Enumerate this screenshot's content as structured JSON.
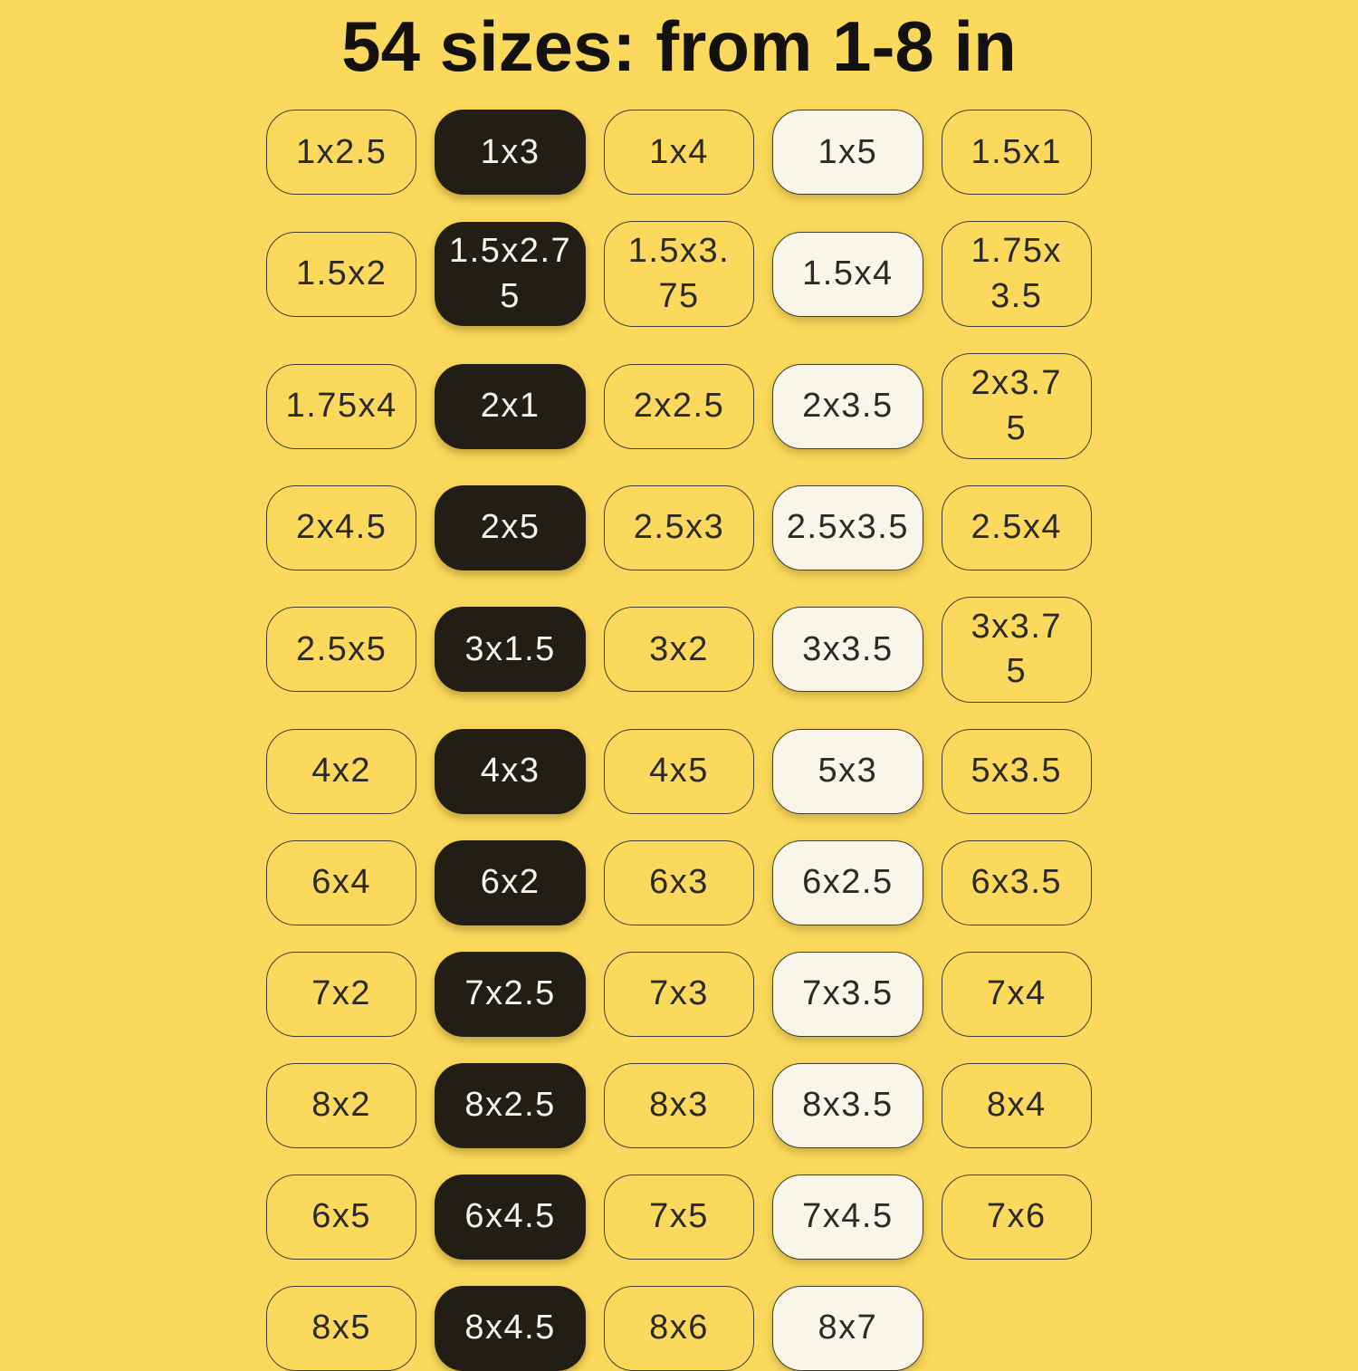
{
  "title": "54 sizes: from 1-8 in",
  "colors": {
    "background": "#FBD95C",
    "pill_dark_fill": "#221E15",
    "pill_cream_fill": "#F9F6E9",
    "pill_border": "#403D33",
    "text_dark": "#2B2A26",
    "text_light": "#F7F3E8",
    "title_color": "#14120E"
  },
  "grid": {
    "rows": [
      {
        "cells": [
          {
            "label": "1x2.5",
            "style": "outline"
          },
          {
            "label": "1x3",
            "style": "dark"
          },
          {
            "label": "1x4",
            "style": "outline"
          },
          {
            "label": "1x5",
            "style": "cream"
          },
          {
            "label": "1.5x1",
            "style": "outline"
          }
        ]
      },
      {
        "cells": [
          {
            "label": "1.5x2",
            "style": "outline"
          },
          {
            "label": "1.5x2.7\n5",
            "style": "dark"
          },
          {
            "label": "1.5x3.\n75",
            "style": "outline"
          },
          {
            "label": "1.5x4",
            "style": "cream"
          },
          {
            "label": "1.75x\n3.5",
            "style": "outline"
          }
        ]
      },
      {
        "cells": [
          {
            "label": "1.75x4",
            "style": "outline"
          },
          {
            "label": "2x1",
            "style": "dark"
          },
          {
            "label": "2x2.5",
            "style": "outline"
          },
          {
            "label": "2x3.5",
            "style": "cream"
          },
          {
            "label": "2x3.7\n5",
            "style": "outline"
          }
        ]
      },
      {
        "cells": [
          {
            "label": "2x4.5",
            "style": "outline"
          },
          {
            "label": "2x5",
            "style": "dark"
          },
          {
            "label": "2.5x3",
            "style": "outline"
          },
          {
            "label": "2.5x3.5",
            "style": "cream"
          },
          {
            "label": "2.5x4",
            "style": "outline"
          }
        ]
      },
      {
        "cells": [
          {
            "label": "2.5x5",
            "style": "outline"
          },
          {
            "label": "3x1.5",
            "style": "dark"
          },
          {
            "label": "3x2",
            "style": "outline"
          },
          {
            "label": "3x3.5",
            "style": "cream"
          },
          {
            "label": "3x3.7\n5",
            "style": "outline"
          }
        ]
      },
      {
        "cells": [
          {
            "label": "4x2",
            "style": "outline"
          },
          {
            "label": "4x3",
            "style": "dark"
          },
          {
            "label": "4x5",
            "style": "outline"
          },
          {
            "label": "5x3",
            "style": "cream"
          },
          {
            "label": "5x3.5",
            "style": "outline"
          }
        ]
      },
      {
        "cells": [
          {
            "label": "6x4",
            "style": "outline"
          },
          {
            "label": "6x2",
            "style": "dark"
          },
          {
            "label": "6x3",
            "style": "outline"
          },
          {
            "label": "6x2.5",
            "style": "cream"
          },
          {
            "label": "6x3.5",
            "style": "outline"
          }
        ]
      },
      {
        "cells": [
          {
            "label": "7x2",
            "style": "outline"
          },
          {
            "label": "7x2.5",
            "style": "dark"
          },
          {
            "label": "7x3",
            "style": "outline"
          },
          {
            "label": "7x3.5",
            "style": "cream"
          },
          {
            "label": "7x4",
            "style": "outline"
          }
        ]
      },
      {
        "cells": [
          {
            "label": "8x2",
            "style": "outline"
          },
          {
            "label": "8x2.5",
            "style": "dark"
          },
          {
            "label": "8x3",
            "style": "outline"
          },
          {
            "label": "8x3.5",
            "style": "cream"
          },
          {
            "label": "8x4",
            "style": "outline"
          }
        ]
      },
      {
        "cells": [
          {
            "label": "6x5",
            "style": "outline"
          },
          {
            "label": "6x4.5",
            "style": "dark"
          },
          {
            "label": "7x5",
            "style": "outline"
          },
          {
            "label": "7x4.5",
            "style": "cream"
          },
          {
            "label": "7x6",
            "style": "outline"
          }
        ]
      },
      {
        "cells": [
          {
            "label": "8x5",
            "style": "outline"
          },
          {
            "label": "8x4.5",
            "style": "dark"
          },
          {
            "label": "8x6",
            "style": "outline"
          },
          {
            "label": "8x7",
            "style": "cream"
          }
        ]
      }
    ]
  }
}
